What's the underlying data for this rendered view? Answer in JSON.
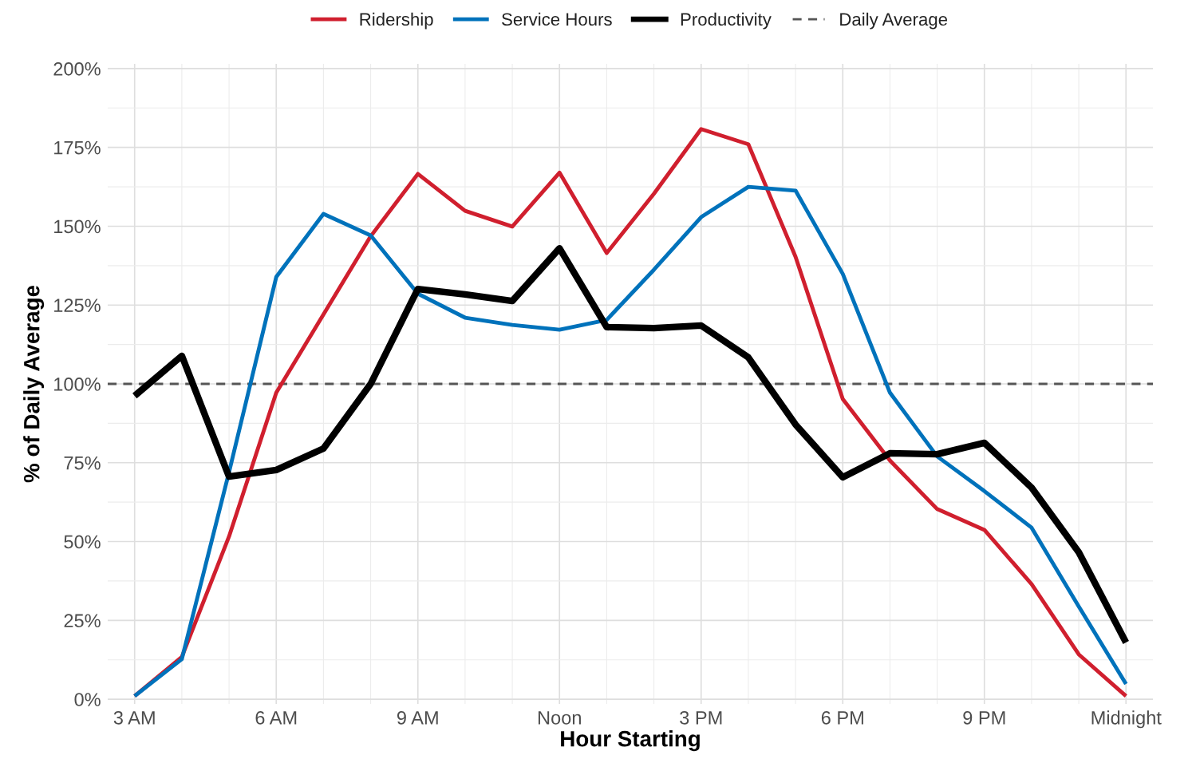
{
  "chart_data": {
    "type": "line",
    "xlabel": "Hour Starting",
    "ylabel": "% of Daily Average",
    "categories": [
      "3 AM",
      null,
      null,
      "6 AM",
      null,
      null,
      "9 AM",
      null,
      null,
      "Noon",
      null,
      null,
      "3 PM",
      null,
      null,
      "6 PM",
      null,
      null,
      "9 PM",
      null,
      null,
      "Midnight"
    ],
    "series": [
      {
        "name": "Ridership",
        "color": "#d01f2e",
        "values": [
          1,
          13.4,
          51.6,
          97.2,
          122,
          146.8,
          166.6,
          154.9,
          149.9,
          167,
          141.5,
          160.3,
          180.8,
          176,
          140.3,
          95.2,
          75.7,
          60.3,
          53.7,
          36.5,
          14.2,
          1
        ]
      },
      {
        "name": "Service Hours",
        "color": "#0072bb",
        "values": [
          1,
          12.7,
          72,
          133.9,
          153.9,
          147.1,
          128.6,
          121,
          118.7,
          117.2,
          120.3,
          136.2,
          152.9,
          162.5,
          161.3,
          134.9,
          97.2,
          77,
          66,
          54.4,
          29.4,
          4.8
        ]
      },
      {
        "name": "Productivity",
        "color": "#000000",
        "values": [
          96.2,
          108.9,
          70.6,
          72.7,
          79.5,
          100,
          130.1,
          128.4,
          126.3,
          143,
          118,
          117.7,
          118.5,
          108.4,
          87.1,
          70.4,
          78,
          77.7,
          81.3,
          67.1,
          46.6,
          18
        ]
      }
    ],
    "ref_lines": [
      {
        "axis": "y",
        "value": 100,
        "label": "Daily Average",
        "color": "#555555",
        "line_style": "dashed"
      }
    ],
    "ylim": [
      -1.5,
      201.5
    ],
    "yticks": [
      {
        "value": 0,
        "label": "0%"
      },
      {
        "value": 25,
        "label": "25%"
      },
      {
        "value": 50,
        "label": "50%"
      },
      {
        "value": 75,
        "label": "75%"
      },
      {
        "value": 100,
        "label": "100%"
      },
      {
        "value": 125,
        "label": "125%"
      },
      {
        "value": 150,
        "label": "150%"
      },
      {
        "value": 175,
        "label": "175%"
      },
      {
        "value": 200,
        "label": "200%"
      }
    ],
    "grid": true,
    "legend": "top",
    "marker": "none",
    "line_style": "solid"
  }
}
